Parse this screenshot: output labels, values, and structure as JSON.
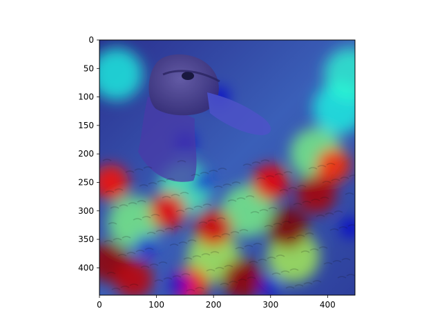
{
  "chart_data": {
    "type": "heatmap",
    "title": "",
    "xlabel": "",
    "ylabel": "",
    "xlim": [
      0,
      448
    ],
    "ylim": [
      448,
      0
    ],
    "x_ticks": [
      0,
      100,
      200,
      300,
      400
    ],
    "y_ticks": [
      0,
      50,
      100,
      150,
      200,
      250,
      300,
      350,
      400
    ],
    "colormap": "jet",
    "alpha": 0.5,
    "grid": false,
    "description_colors": {
      "low": "#1a1aa6",
      "mid": "#2fd3c0",
      "high": "#e8230f"
    },
    "hotspots": [
      {
        "x": 330,
        "y": 330,
        "intensity": 1.0
      },
      {
        "x": 250,
        "y": 420,
        "intensity": 0.95
      },
      {
        "x": 380,
        "y": 270,
        "intensity": 0.9
      },
      {
        "x": 15,
        "y": 390,
        "intensity": 0.95
      },
      {
        "x": 200,
        "y": 330,
        "intensity": 0.8
      },
      {
        "x": 120,
        "y": 300,
        "intensity": 0.75
      },
      {
        "x": 20,
        "y": 250,
        "intensity": 0.7
      },
      {
        "x": 300,
        "y": 250,
        "intensity": 0.75
      },
      {
        "x": 410,
        "y": 220,
        "intensity": 0.65
      },
      {
        "x": 60,
        "y": 420,
        "intensity": 0.85
      },
      {
        "x": 160,
        "y": 430,
        "intensity": 0.7
      }
    ],
    "coldspots": [
      {
        "x": 150,
        "y": 180
      },
      {
        "x": 180,
        "y": 250
      },
      {
        "x": 210,
        "y": 100
      },
      {
        "x": 80,
        "y": 360
      },
      {
        "x": 140,
        "y": 430
      },
      {
        "x": 300,
        "y": 430
      },
      {
        "x": 440,
        "y": 330
      }
    ]
  }
}
